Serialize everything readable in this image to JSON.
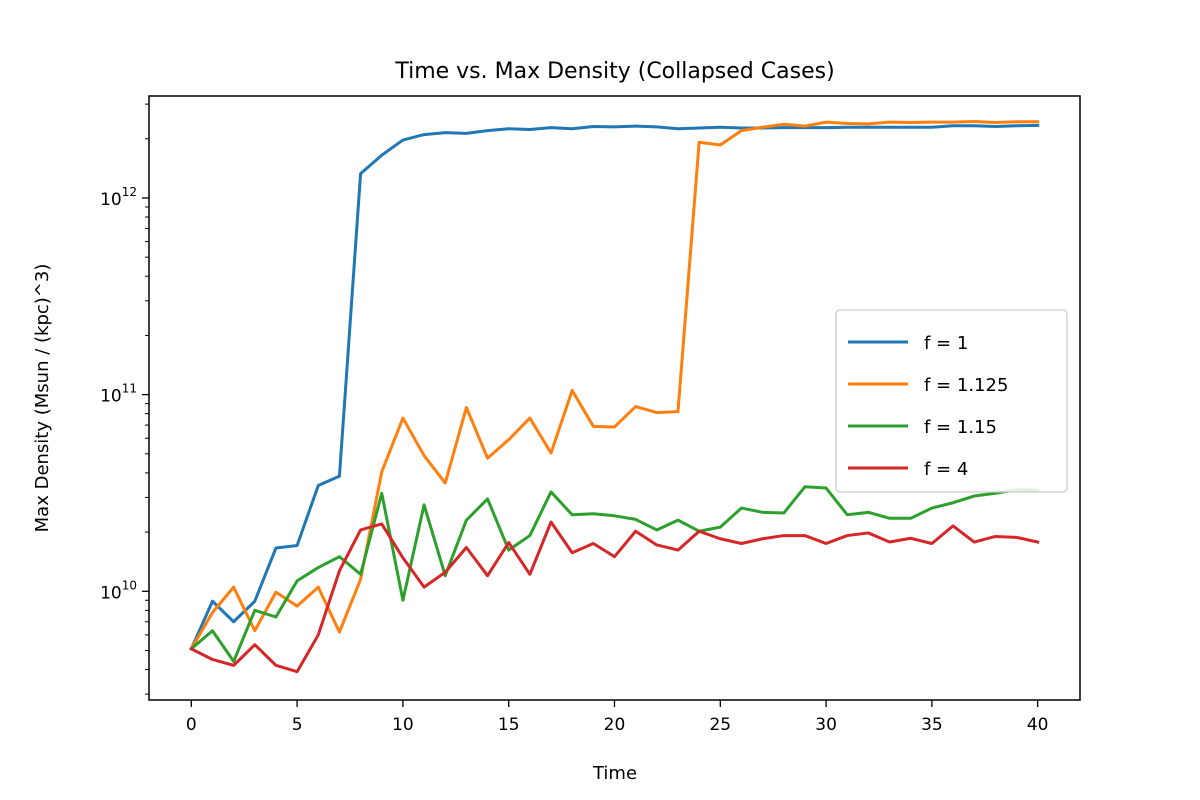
{
  "chart_data": {
    "type": "line",
    "title": "Time vs. Max Density (Collapsed Cases)",
    "xlabel": "Time",
    "ylabel": "Max Density (Msun / (kpc)^3)",
    "xlim": [
      -2,
      42
    ],
    "ylim": [
      2800000000.0,
      3300000000000.0
    ],
    "yscale": "log",
    "xticks": [
      0,
      5,
      10,
      15,
      20,
      25,
      30,
      35,
      40
    ],
    "xtick_labels": [
      "0",
      "5",
      "10",
      "15",
      "20",
      "25",
      "30",
      "35",
      "40"
    ],
    "yticks": [
      10000000000.0,
      100000000000.0,
      1000000000000.0
    ],
    "ytick_labels": [
      {
        "base": "10",
        "exp": "10"
      },
      {
        "base": "10",
        "exp": "11"
      },
      {
        "base": "10",
        "exp": "12"
      }
    ],
    "legend_position": "center-right",
    "grid": false,
    "x": [
      0,
      1,
      2,
      3,
      4,
      5,
      6,
      7,
      8,
      9,
      10,
      11,
      12,
      13,
      14,
      15,
      16,
      17,
      18,
      19,
      20,
      21,
      22,
      23,
      24,
      25,
      26,
      27,
      28,
      29,
      30,
      31,
      32,
      33,
      34,
      35,
      36,
      37,
      38,
      39,
      40
    ],
    "series": [
      {
        "name": "f = 1",
        "color": "#1f77b4",
        "values": [
          5100000000.0,
          8900000000.0,
          7000000000.0,
          8900000000.0,
          16600000000.0,
          17100000000.0,
          34500000000.0,
          38500000000.0,
          1330000000000.0,
          1650000000000.0,
          1970000000000.0,
          2100000000000.0,
          2150000000000.0,
          2130000000000.0,
          2200000000000.0,
          2250000000000.0,
          2230000000000.0,
          2280000000000.0,
          2250000000000.0,
          2310000000000.0,
          2300000000000.0,
          2320000000000.0,
          2300000000000.0,
          2250000000000.0,
          2270000000000.0,
          2290000000000.0,
          2270000000000.0,
          2270000000000.0,
          2280000000000.0,
          2280000000000.0,
          2280000000000.0,
          2290000000000.0,
          2290000000000.0,
          2290000000000.0,
          2290000000000.0,
          2290000000000.0,
          2330000000000.0,
          2330000000000.0,
          2310000000000.0,
          2330000000000.0,
          2340000000000.0
        ]
      },
      {
        "name": "f = 1.125",
        "color": "#ff7f0e",
        "values": [
          5100000000.0,
          7800000000.0,
          10500000000.0,
          6300000000.0,
          9900000000.0,
          8400000000.0,
          10500000000.0,
          6200000000.0,
          11500000000.0,
          40500000000.0,
          76000000000.0,
          49000000000.0,
          35500000000.0,
          86000000000.0,
          47500000000.0,
          59000000000.0,
          76000000000.0,
          50500000000.0,
          105000000000.0,
          69000000000.0,
          68500000000.0,
          87000000000.0,
          81000000000.0,
          82000000000.0,
          1920000000000.0,
          1860000000000.0,
          2200000000000.0,
          2290000000000.0,
          2370000000000.0,
          2320000000000.0,
          2430000000000.0,
          2390000000000.0,
          2380000000000.0,
          2430000000000.0,
          2420000000000.0,
          2430000000000.0,
          2430000000000.0,
          2450000000000.0,
          2420000000000.0,
          2440000000000.0,
          2440000000000.0
        ]
      },
      {
        "name": "f = 1.15",
        "color": "#2ca02c",
        "values": [
          5100000000.0,
          6300000000.0,
          4400000000.0,
          8000000000.0,
          7400000000.0,
          11300000000.0,
          13200000000.0,
          15000000000.0,
          12200000000.0,
          31500000000.0,
          9000000000.0,
          27500000000.0,
          12000000000.0,
          23000000000.0,
          29500000000.0,
          16200000000.0,
          19200000000.0,
          32000000000.0,
          24500000000.0,
          24800000000.0,
          24200000000.0,
          23200000000.0,
          20500000000.0,
          23000000000.0,
          20200000000.0,
          21200000000.0,
          26500000000.0,
          25200000000.0,
          25000000000.0,
          34000000000.0,
          33500000000.0,
          24500000000.0,
          25200000000.0,
          23500000000.0,
          23500000000.0,
          26500000000.0,
          28200000000.0,
          30500000000.0,
          31500000000.0,
          32800000000.0,
          32700000000.0
        ]
      },
      {
        "name": "f = 4",
        "color": "#d62728",
        "values": [
          5100000000.0,
          4500000000.0,
          4200000000.0,
          5350000000.0,
          4200000000.0,
          3900000000.0,
          6000000000.0,
          12700000000.0,
          20500000000.0,
          22000000000.0,
          14800000000.0,
          10500000000.0,
          12500000000.0,
          16700000000.0,
          12000000000.0,
          17700000000.0,
          12200000000.0,
          22500000000.0,
          15700000000.0,
          17500000000.0,
          15000000000.0,
          20200000000.0,
          17200000000.0,
          16200000000.0,
          20200000000.0,
          18500000000.0,
          17500000000.0,
          18500000000.0,
          19200000000.0,
          19200000000.0,
          17500000000.0,
          19200000000.0,
          19800000000.0,
          17800000000.0,
          18600000000.0,
          17500000000.0,
          21500000000.0,
          17800000000.0,
          19000000000.0,
          18800000000.0,
          17800000000.0
        ]
      }
    ]
  }
}
